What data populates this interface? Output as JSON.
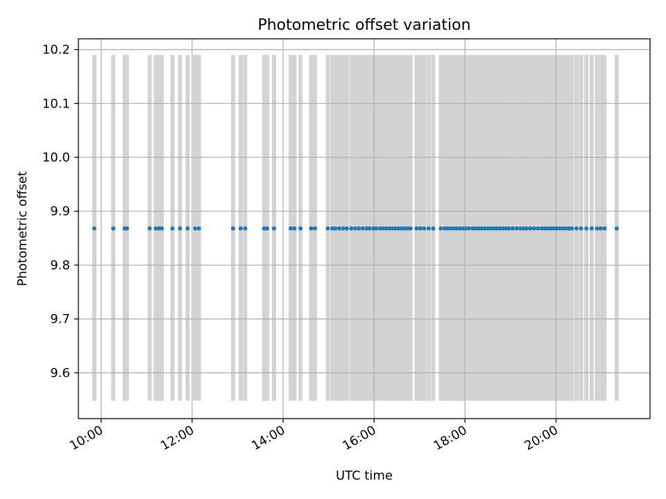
{
  "chart_data": {
    "type": "scatter",
    "title": "Photometric offset variation",
    "xlabel": "UTC time",
    "ylabel": "Photometric offset",
    "xlim": [
      "09:30",
      "22:04"
    ],
    "ylim": [
      9.515,
      10.22
    ],
    "x_ticks": [
      "10:00",
      "12:00",
      "14:00",
      "16:00",
      "18:00",
      "20:00"
    ],
    "y_ticks": [
      "9.6",
      "9.7",
      "9.8",
      "9.9",
      "10.0",
      "10.1",
      "10.2"
    ],
    "grid": true,
    "band_range": [
      9.548,
      10.19
    ],
    "series": [
      {
        "marker": "point",
        "color": "#1f77b4",
        "y": 9.868,
        "times": [
          "09:51",
          "10:16",
          "10:31",
          "10:34",
          "11:04",
          "11:12",
          "11:16",
          "11:20",
          "11:34",
          "11:44",
          "11:54",
          "12:04",
          "12:09",
          "12:54",
          "13:04",
          "13:10",
          "13:35",
          "13:39",
          "13:48",
          "14:10",
          "14:15",
          "14:23",
          "14:37",
          "14:42",
          "14:59",
          "15:05",
          "15:09",
          "15:14",
          "15:19",
          "15:24",
          "15:30",
          "15:35",
          "15:40",
          "15:45",
          "15:50",
          "15:54",
          "15:59",
          "16:03",
          "16:08",
          "16:12",
          "16:16",
          "16:20",
          "16:24",
          "16:28",
          "16:32",
          "16:36",
          "16:40",
          "16:44",
          "16:48",
          "16:56",
          "17:01",
          "17:06",
          "17:12",
          "17:18",
          "17:28",
          "17:33",
          "17:37",
          "17:41",
          "17:45",
          "17:49",
          "17:53",
          "17:57",
          "18:01",
          "18:05",
          "18:10",
          "18:14",
          "18:18",
          "18:22",
          "18:26",
          "18:30",
          "18:34",
          "18:38",
          "18:42",
          "18:46",
          "18:50",
          "18:54",
          "18:58",
          "19:03",
          "19:08",
          "19:13",
          "19:17",
          "19:21",
          "19:26",
          "19:31",
          "19:36",
          "19:41",
          "19:45",
          "19:49",
          "19:53",
          "19:57",
          "20:01",
          "20:05",
          "20:09",
          "20:13",
          "20:17",
          "20:21",
          "20:27",
          "20:33",
          "20:40",
          "20:47",
          "20:54",
          "20:59",
          "21:04",
          "21:20"
        ]
      }
    ],
    "colors": {
      "band": "#d3d3d3",
      "points": "#1f77b4",
      "grid": "#b0b0b0",
      "axes": "#000000"
    }
  }
}
